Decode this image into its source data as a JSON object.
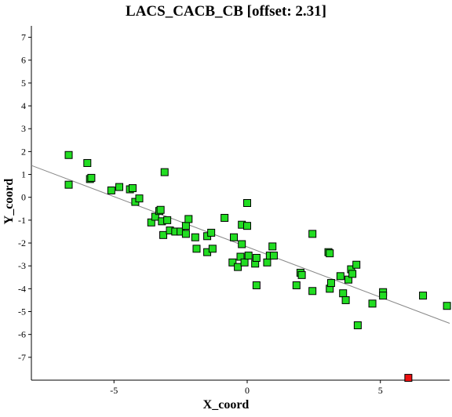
{
  "chart_data": {
    "type": "scatter",
    "title": "LACS_CACB_CB [offset: 2.31]",
    "xlabel": "X_coord",
    "ylabel": "Y_coord",
    "xlim": [
      -8.1,
      7.6
    ],
    "ylim": [
      -8.0,
      7.5
    ],
    "xticks": [
      -5,
      0,
      5
    ],
    "yticks": [
      7,
      6,
      5,
      4,
      3,
      2,
      1,
      0,
      -1,
      -2,
      -3,
      -4,
      -5,
      -6,
      -7
    ],
    "grid": false,
    "regression_line": {
      "slope": -0.44,
      "intercept": -2.17
    },
    "colors": {
      "point": "#22dd22",
      "outlier": "#ee1111",
      "line": "#888888"
    },
    "series": [
      {
        "points": [
          [
            -6.7,
            1.85
          ],
          [
            -6.7,
            0.55
          ],
          [
            -6.0,
            1.5
          ],
          [
            -5.9,
            0.8
          ],
          [
            -5.85,
            0.85
          ],
          [
            -5.1,
            0.3
          ],
          [
            -4.8,
            0.45
          ],
          [
            -4.4,
            0.35
          ],
          [
            -4.3,
            0.4
          ],
          [
            -4.2,
            -0.2
          ],
          [
            -4.05,
            -0.05
          ],
          [
            -3.6,
            -1.1
          ],
          [
            -3.45,
            -0.85
          ],
          [
            -3.3,
            -0.6
          ],
          [
            -3.25,
            -0.55
          ],
          [
            -3.2,
            -1.05
          ],
          [
            -3.15,
            -1.65
          ],
          [
            -3.1,
            1.1
          ],
          [
            -3.0,
            -1.0
          ],
          [
            -2.9,
            -1.45
          ],
          [
            -2.7,
            -1.5
          ],
          [
            -2.5,
            -1.5
          ],
          [
            -2.3,
            -1.6
          ],
          [
            -2.3,
            -1.25
          ],
          [
            -2.2,
            -0.95
          ],
          [
            -1.95,
            -1.75
          ],
          [
            -1.9,
            -2.25
          ],
          [
            -1.5,
            -1.7
          ],
          [
            -1.5,
            -2.4
          ],
          [
            -1.35,
            -1.55
          ],
          [
            -1.3,
            -2.25
          ],
          [
            -0.85,
            -0.9
          ],
          [
            -0.55,
            -2.85
          ],
          [
            -0.5,
            -1.75
          ],
          [
            -0.35,
            -3.05
          ],
          [
            -0.25,
            -2.6
          ],
          [
            -0.2,
            -1.2
          ],
          [
            -0.2,
            -2.05
          ],
          [
            -0.1,
            -2.85
          ],
          [
            0.0,
            -1.25
          ],
          [
            0.05,
            -2.55
          ],
          [
            0.0,
            -0.25
          ],
          [
            0.3,
            -2.9
          ],
          [
            0.35,
            -2.65
          ],
          [
            0.35,
            -3.85
          ],
          [
            0.75,
            -2.85
          ],
          [
            0.85,
            -2.55
          ],
          [
            0.95,
            -2.15
          ],
          [
            1.0,
            -2.55
          ],
          [
            1.85,
            -3.85
          ],
          [
            2.0,
            -3.3
          ],
          [
            2.05,
            -3.4
          ],
          [
            2.45,
            -1.6
          ],
          [
            2.45,
            -4.1
          ],
          [
            3.05,
            -2.4
          ],
          [
            3.1,
            -2.45
          ],
          [
            3.1,
            -4.0
          ],
          [
            3.15,
            -3.75
          ],
          [
            3.5,
            -3.45
          ],
          [
            3.6,
            -4.2
          ],
          [
            3.7,
            -4.5
          ],
          [
            3.8,
            -3.6
          ],
          [
            3.9,
            -3.15
          ],
          [
            3.95,
            -3.35
          ],
          [
            4.1,
            -2.95
          ],
          [
            4.15,
            -5.6
          ],
          [
            4.7,
            -4.65
          ],
          [
            5.1,
            -4.15
          ],
          [
            5.1,
            -4.3
          ],
          [
            6.6,
            -4.3
          ],
          [
            7.5,
            -4.75
          ]
        ]
      },
      {
        "points": [
          [
            6.05,
            -7.9
          ]
        ]
      }
    ]
  }
}
